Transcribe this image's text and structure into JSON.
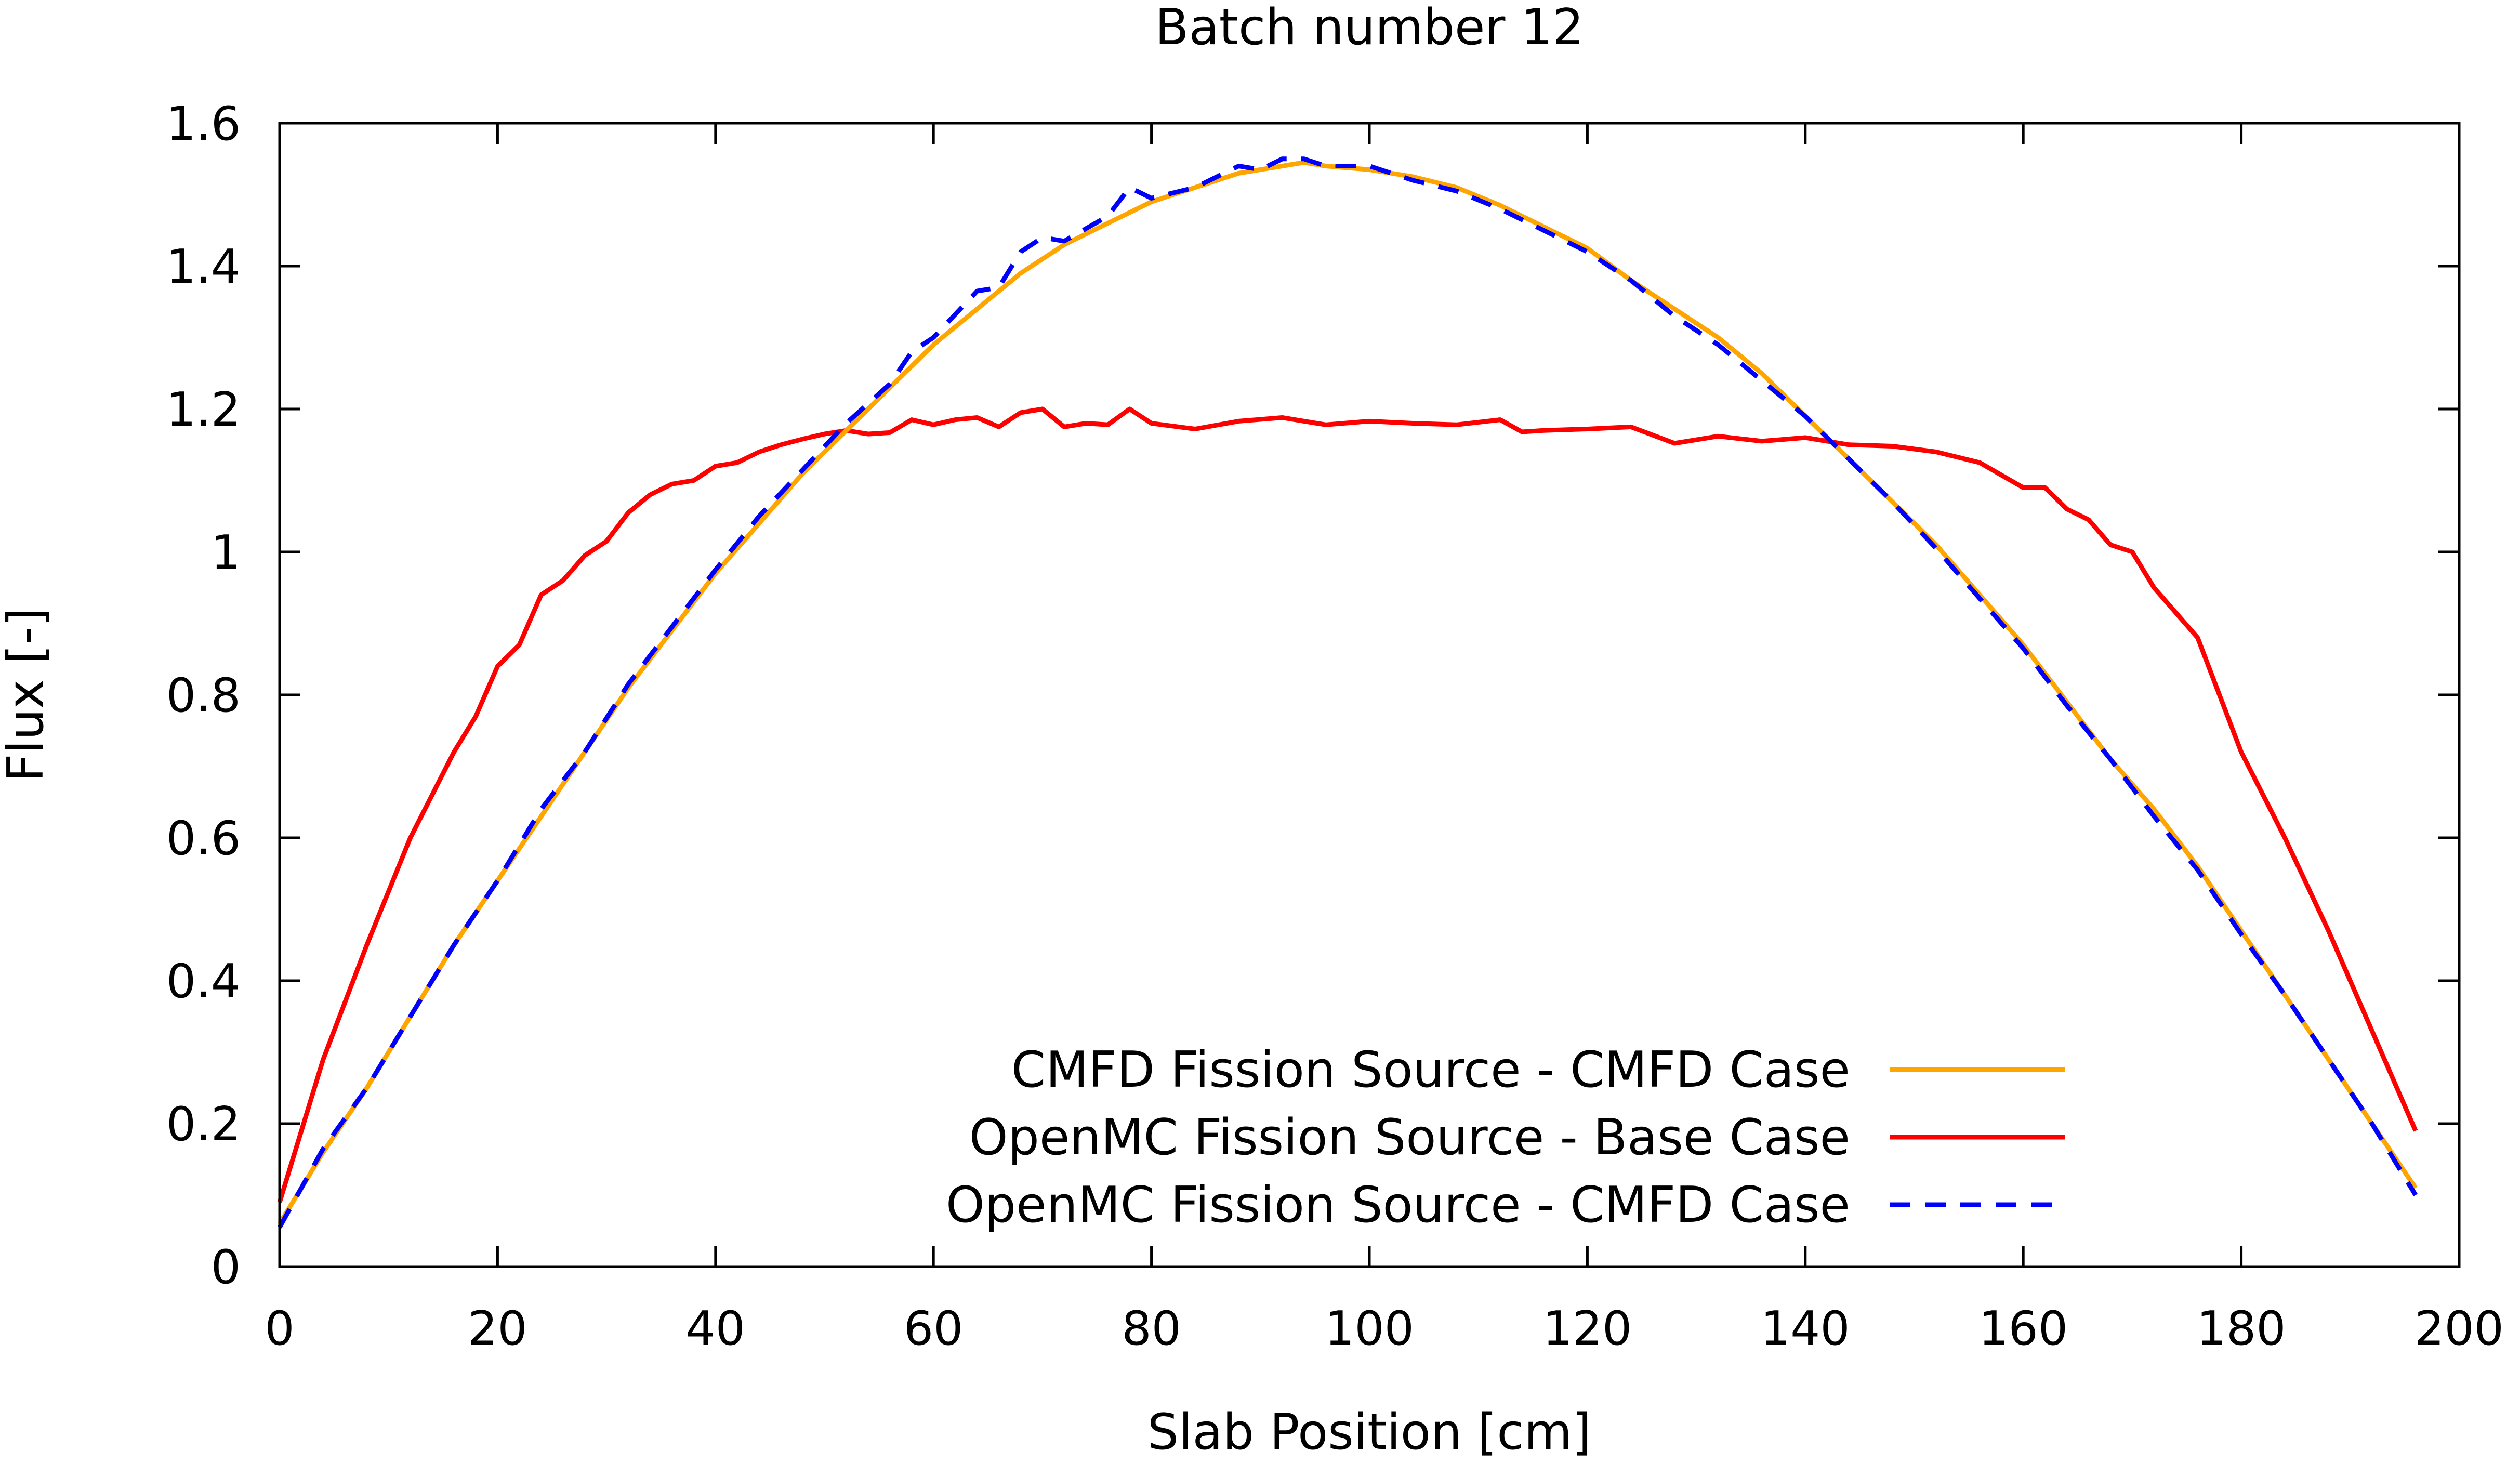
{
  "chart_data": {
    "type": "line",
    "title": "Batch number 12",
    "xlabel": "Slab Position [cm]",
    "ylabel": "Flux [-]",
    "xlim": [
      0,
      200
    ],
    "ylim": [
      0,
      1.6
    ],
    "xticks": [
      0,
      20,
      40,
      60,
      80,
      100,
      120,
      140,
      160,
      180,
      200
    ],
    "yticks": [
      0,
      0.2,
      0.4,
      0.6,
      0.8,
      1,
      1.2,
      1.4,
      1.6
    ],
    "xtick_labels": [
      "0",
      "20",
      "40",
      "60",
      "80",
      "100",
      "120",
      "140",
      "160",
      "180",
      "200"
    ],
    "ytick_labels": [
      "0",
      "0.2",
      "0.4",
      "0.6",
      "0.8",
      "1",
      "1.2",
      "1.4",
      "1.6"
    ],
    "grid": false,
    "legend_position": "bottom-right",
    "series": [
      {
        "name": "CMFD Fission Source - CMFD Case",
        "color": "#FFA500",
        "dash": "solid",
        "x": [
          0,
          4,
          8,
          12,
          16,
          20,
          24,
          28,
          32,
          36,
          40,
          44,
          48,
          52,
          56,
          60,
          64,
          68,
          72,
          76,
          80,
          84,
          88,
          92,
          94,
          96,
          100,
          104,
          108,
          112,
          116,
          120,
          124,
          128,
          132,
          136,
          140,
          144,
          148,
          152,
          156,
          160,
          164,
          168,
          172,
          176,
          180,
          184,
          188,
          192,
          196
        ],
        "y": [
          0.06,
          0.16,
          0.25,
          0.35,
          0.45,
          0.54,
          0.63,
          0.72,
          0.81,
          0.89,
          0.97,
          1.04,
          1.11,
          1.17,
          1.23,
          1.29,
          1.34,
          1.39,
          1.43,
          1.46,
          1.49,
          1.51,
          1.53,
          1.54,
          1.545,
          1.54,
          1.535,
          1.525,
          1.51,
          1.485,
          1.455,
          1.425,
          1.38,
          1.34,
          1.3,
          1.25,
          1.19,
          1.13,
          1.07,
          1.01,
          0.94,
          0.87,
          0.79,
          0.71,
          0.64,
          0.56,
          0.47,
          0.38,
          0.29,
          0.2,
          0.11
        ]
      },
      {
        "name": "OpenMC Fission Source - Base Case",
        "color": "#FF0000",
        "dash": "solid",
        "x": [
          0,
          4,
          8,
          12,
          16,
          18,
          20,
          22,
          24,
          26,
          28,
          30,
          32,
          34,
          36,
          38,
          40,
          42,
          44,
          46,
          48,
          50,
          52,
          54,
          56,
          58,
          60,
          62,
          64,
          66,
          68,
          70,
          72,
          74,
          76,
          78,
          80,
          84,
          88,
          92,
          96,
          100,
          104,
          108,
          112,
          114,
          116,
          120,
          124,
          128,
          132,
          136,
          140,
          144,
          148,
          152,
          156,
          160,
          162,
          164,
          166,
          168,
          170,
          172,
          176,
          180,
          184,
          188,
          192,
          196
        ],
        "y": [
          0.09,
          0.29,
          0.45,
          0.6,
          0.72,
          0.77,
          0.84,
          0.87,
          0.94,
          0.96,
          0.995,
          1.015,
          1.055,
          1.08,
          1.095,
          1.1,
          1.12,
          1.125,
          1.14,
          1.15,
          1.158,
          1.165,
          1.17,
          1.165,
          1.167,
          1.185,
          1.178,
          1.185,
          1.188,
          1.175,
          1.195,
          1.2,
          1.175,
          1.18,
          1.178,
          1.2,
          1.18,
          1.172,
          1.183,
          1.188,
          1.178,
          1.183,
          1.18,
          1.178,
          1.185,
          1.168,
          1.17,
          1.172,
          1.175,
          1.152,
          1.162,
          1.155,
          1.16,
          1.15,
          1.148,
          1.14,
          1.125,
          1.09,
          1.09,
          1.06,
          1.045,
          1.01,
          1.0,
          0.95,
          0.88,
          0.72,
          0.6,
          0.47,
          0.33,
          0.19
        ]
      },
      {
        "name": "OpenMC Fission Source - CMFD Case",
        "color": "#0000FF",
        "dash": "dashed",
        "x": [
          0,
          4,
          8,
          12,
          16,
          20,
          24,
          28,
          32,
          36,
          40,
          44,
          48,
          52,
          56,
          58,
          60,
          64,
          66,
          68,
          70,
          72,
          76,
          78,
          80,
          84,
          88,
          90,
          92,
          94,
          96,
          100,
          104,
          108,
          112,
          116,
          120,
          124,
          128,
          132,
          136,
          140,
          144,
          148,
          152,
          156,
          160,
          164,
          168,
          172,
          176,
          180,
          184,
          188,
          192,
          196
        ],
        "y": [
          0.055,
          0.165,
          0.25,
          0.35,
          0.45,
          0.54,
          0.64,
          0.72,
          0.815,
          0.895,
          0.975,
          1.05,
          1.115,
          1.18,
          1.235,
          1.28,
          1.3,
          1.365,
          1.37,
          1.42,
          1.44,
          1.435,
          1.47,
          1.51,
          1.495,
          1.51,
          1.54,
          1.535,
          1.55,
          1.55,
          1.54,
          1.54,
          1.52,
          1.505,
          1.48,
          1.45,
          1.42,
          1.38,
          1.33,
          1.29,
          1.24,
          1.19,
          1.13,
          1.07,
          1.005,
          0.935,
          0.865,
          0.785,
          0.71,
          0.63,
          0.555,
          0.465,
          0.38,
          0.29,
          0.2,
          0.1
        ]
      }
    ]
  }
}
